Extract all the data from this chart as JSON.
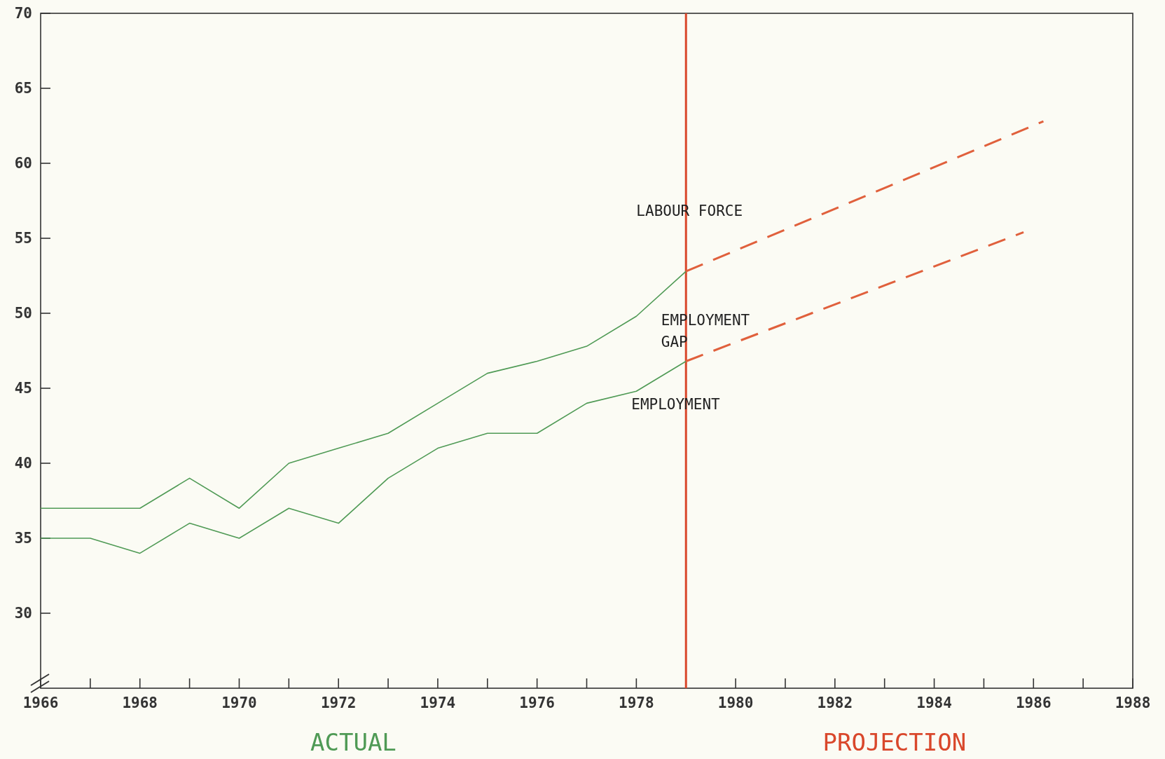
{
  "chart_data": {
    "type": "line",
    "xlim": [
      1966,
      1988
    ],
    "ylim": [
      25,
      70
    ],
    "xticks": [
      1966,
      {
        "value": 1967,
        "label": null
      },
      1968,
      {
        "value": 1969,
        "label": null
      },
      1970,
      {
        "value": 1971,
        "label": null
      },
      1972,
      {
        "value": 1973,
        "label": null
      },
      1974,
      {
        "value": 1975,
        "label": null
      },
      1976,
      {
        "value": 1977,
        "label": null
      },
      1978,
      {
        "value": 1979,
        "label": null
      },
      1980,
      {
        "value": 1981,
        "label": null
      },
      1982,
      {
        "value": 1983,
        "label": null
      },
      1984,
      {
        "value": 1985,
        "label": null
      },
      1986,
      {
        "value": 1987,
        "label": null
      },
      1988
    ],
    "yticks": [
      30,
      35,
      40,
      45,
      50,
      55,
      60,
      65,
      70
    ],
    "grid": false,
    "marker": "none",
    "series": [
      {
        "color": "#4f9a55",
        "line_style": "solid",
        "x": [
          1966,
          1967,
          1968,
          1969,
          1970,
          1971,
          1972,
          1973,
          1974,
          1975,
          1976,
          1977,
          1978,
          1979
        ],
        "values": [
          37,
          37,
          37,
          39,
          37,
          40,
          41,
          42,
          44,
          46,
          46.8,
          47.8,
          49.8,
          52.8
        ]
      },
      {
        "color": "#e0603c",
        "line_style": "dashed",
        "x": [
          1979,
          1986.2
        ],
        "values": [
          52.8,
          62.8
        ]
      },
      {
        "color": "#4f9a55",
        "line_style": "solid",
        "x": [
          1966,
          1967,
          1968,
          1969,
          1970,
          1971,
          1972,
          1973,
          1974,
          1975,
          1976,
          1977,
          1978,
          1979
        ],
        "values": [
          35,
          35,
          34,
          36,
          35,
          37,
          36,
          39,
          41,
          42,
          42,
          44,
          44.8,
          46.8
        ]
      },
      {
        "color": "#e0603c",
        "line_style": "dashed",
        "x": [
          1979,
          1985.8
        ],
        "values": [
          46.8,
          55.4
        ]
      }
    ],
    "ref_lines": [
      {
        "axis": "x",
        "value": 1979,
        "color": "#d9472b",
        "line_style": "solid"
      }
    ],
    "annotations": [
      "LABOUR FORCE",
      "EMPLOYMENT GAP",
      "EMPLOYMENT",
      "ACTUAL",
      "PROJECTION"
    ]
  }
}
